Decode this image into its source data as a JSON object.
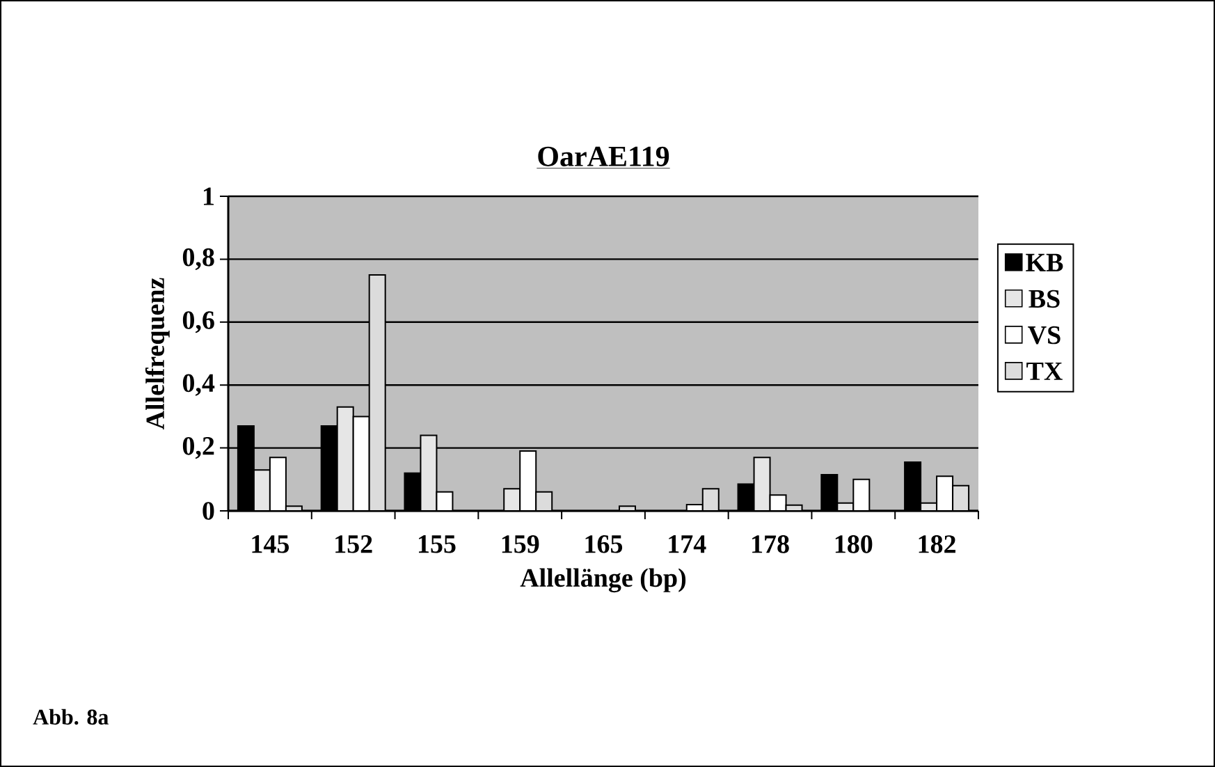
{
  "chart_data": {
    "type": "bar",
    "title": "OarAE119",
    "xlabel": "Allellänge (bp)",
    "ylabel": "Allelfrequenz",
    "annotations": [
      "Abb. 8a"
    ],
    "categories": [
      "145",
      "152",
      "155",
      "159",
      "165",
      "174",
      "178",
      "180",
      "182"
    ],
    "series": [
      {
        "name": "KB",
        "color": "#000000",
        "values": [
          0.27,
          0.27,
          0.12,
          null,
          null,
          null,
          0.085,
          0.115,
          0.155
        ]
      },
      {
        "name": "BS",
        "color": "#e6e6e6",
        "values": [
          0.13,
          0.33,
          0.24,
          0.07,
          null,
          null,
          0.17,
          0.025,
          0.025
        ]
      },
      {
        "name": "VS",
        "color": "#ffffff",
        "values": [
          0.17,
          0.3,
          0.06,
          0.19,
          null,
          0.02,
          0.05,
          0.1,
          0.11
        ]
      },
      {
        "name": "TX",
        "color": "#dcdcdc",
        "values": [
          0.015,
          0.75,
          null,
          0.06,
          0.015,
          0.07,
          0.018,
          null,
          0.08
        ]
      }
    ],
    "ylim": [
      0,
      1
    ],
    "yticks": [
      0,
      {
        "value": 0.2,
        "label": "0,2"
      },
      {
        "value": 0.4,
        "label": "0,4"
      },
      {
        "value": 0.6,
        "label": "0,6"
      },
      {
        "value": 0.8,
        "label": "0,8"
      },
      1
    ],
    "grid": "y",
    "legend": "right"
  }
}
